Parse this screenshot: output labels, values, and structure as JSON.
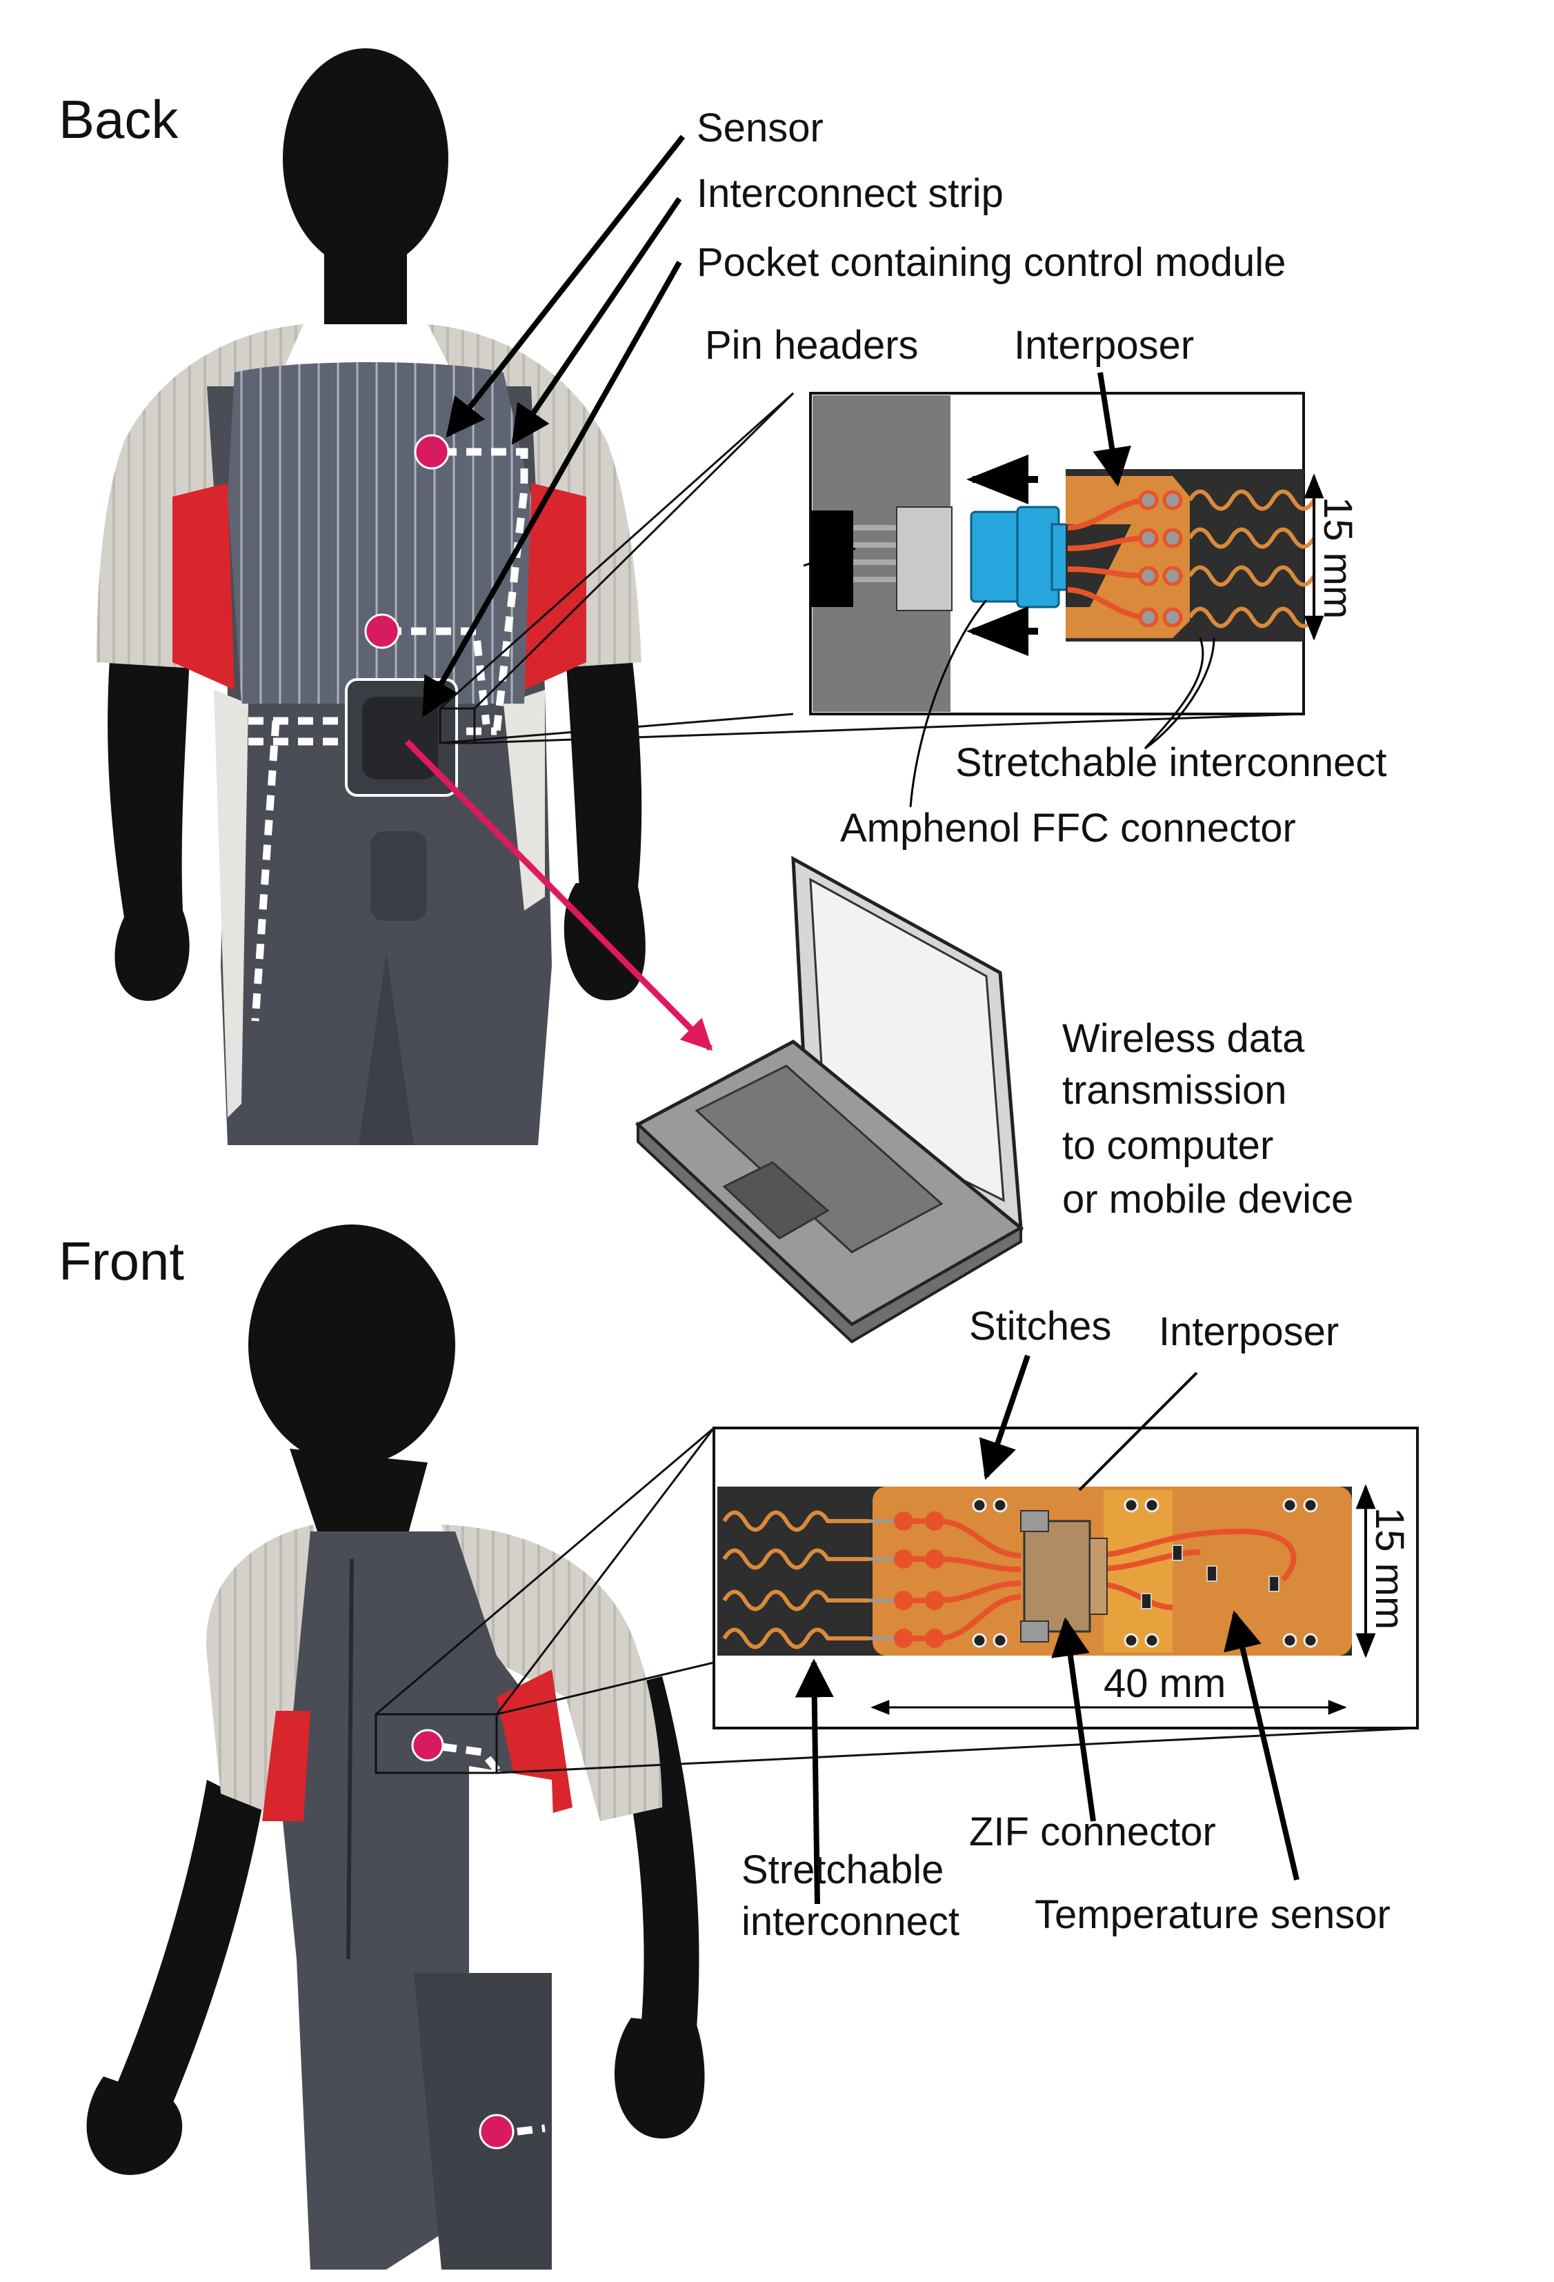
{
  "back": {
    "title": "Back",
    "labels": {
      "sensor": "Sensor",
      "interconnect_strip": "Interconnect strip",
      "pocket": "Pocket containing control module",
      "pin_headers": "Pin headers",
      "interposer": "Interposer",
      "dimension": "15 mm",
      "stretchable_interconnect": "Stretchable interconnect",
      "ffc_connector": "Amphenol FFC connector"
    },
    "wireless": {
      "line1": "Wireless data",
      "line2": "transmission",
      "line3": "to computer",
      "line4": "or mobile device"
    }
  },
  "front": {
    "title": "Front",
    "labels": {
      "stitches": "Stitches",
      "interposer": "Interposer",
      "dimension_height": "15 mm",
      "dimension_length": "40 mm",
      "zif_connector": "ZIF connector",
      "stretchable_line1": "Stretchable",
      "stretchable_line2": "interconnect",
      "temperature_sensor": "Temperature sensor"
    }
  },
  "colors": {
    "sensor_dot": "#d81b60",
    "sleeve": "#d4d1cb",
    "side_panel": "#d8262c",
    "suit": "#4a4d55",
    "back_panel": "#5f6472",
    "mannequin": "#111111",
    "interposer": "#d98a3a",
    "trace": "#e8522a",
    "ffc_blue": "#28a6de",
    "dark_strip": "#2e2e2e",
    "arrow_pink": "#e0195f"
  }
}
